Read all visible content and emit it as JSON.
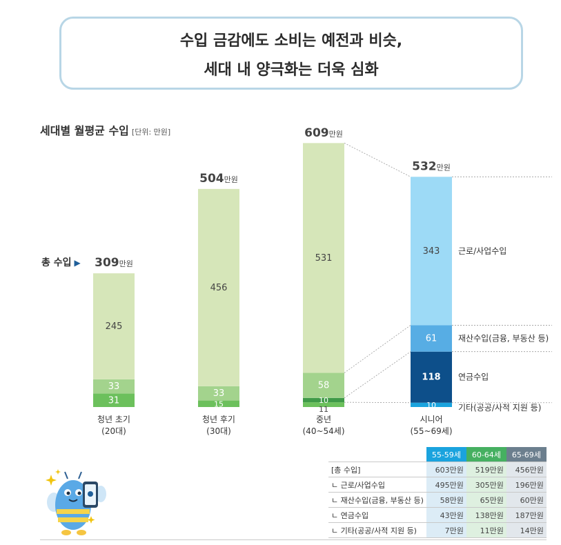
{
  "header": {
    "line1": "수입 금감에도 소비는 예전과 비슷,",
    "line2": "세대 내 양극화는 더욱 심화"
  },
  "chart_title": "세대별 월평균 수입",
  "chart_unit": "[단위: 만원]",
  "total_label": "총 수입",
  "total_arrow": "▶",
  "unit_suffix": "만원",
  "colors": {
    "youth_light": "#d6e6b9",
    "youth_mid": "#a3d38d",
    "youth_dark": "#6cc05c",
    "middle_dark": "#3f9a48",
    "senior_work": "#9ddaf6",
    "senior_property": "#57ade4",
    "senior_pension": "#0d4f8a",
    "senior_other": "#1aa3de"
  },
  "chart_data": {
    "type": "bar",
    "stacked": true,
    "categories": [
      "청년 초기\n(20대)",
      "청년 후기\n(30대)",
      "중년\n(40~54세)",
      "시니어\n(55~69세)"
    ],
    "totals": [
      309,
      504,
      609,
      532
    ],
    "series": [
      {
        "name": "근로/사업수입",
        "values": [
          245,
          456,
          531,
          343
        ]
      },
      {
        "name": "재산수입(금융, 부동산 등)",
        "values": [
          33,
          33,
          58,
          61
        ]
      },
      {
        "name": "연금수입",
        "values": [
          31,
          15,
          10,
          118
        ]
      },
      {
        "name": "기타(공공/사적 지원 등)",
        "values": [
          null,
          null,
          11,
          10
        ]
      }
    ],
    "segment_labels": [
      [
        "245",
        "33",
        "31"
      ],
      [
        "456",
        "33",
        "15"
      ],
      [
        "531",
        "58",
        "10",
        "11"
      ],
      [
        "343",
        "61",
        "118",
        "10"
      ]
    ],
    "ylim": [
      0,
      609
    ]
  },
  "table": {
    "headers": [
      "55-59세",
      "60-64세",
      "65-69세"
    ],
    "rows": [
      {
        "label": "[총 수입]",
        "values": [
          "603만원",
          "519만원",
          "456만원"
        ]
      },
      {
        "label": "ㄴ 근로/사업수입",
        "values": [
          "495만원",
          "305만원",
          "196만원"
        ]
      },
      {
        "label": "ㄴ 재산수입(금융, 부동산 등)",
        "values": [
          "58만원",
          "65만원",
          "60만원"
        ]
      },
      {
        "label": "ㄴ 연금수입",
        "values": [
          "43만원",
          "138만원",
          "187만원"
        ]
      },
      {
        "label": "ㄴ 기타(공공/사적 지원 등)",
        "values": [
          "7만원",
          "11만원",
          "14만원"
        ]
      }
    ]
  }
}
